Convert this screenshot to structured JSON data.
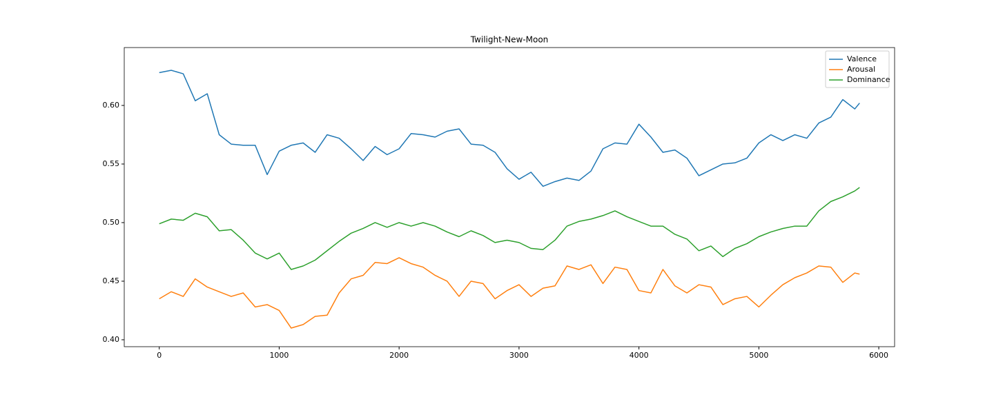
{
  "chart_data": {
    "type": "line",
    "title": "Twilight-New-Moon",
    "x": [
      0,
      100,
      200,
      300,
      400,
      500,
      600,
      700,
      800,
      900,
      1000,
      1100,
      1200,
      1300,
      1400,
      1500,
      1600,
      1700,
      1800,
      1900,
      2000,
      2100,
      2200,
      2300,
      2400,
      2500,
      2600,
      2700,
      2800,
      2900,
      3000,
      3100,
      3200,
      3300,
      3400,
      3500,
      3600,
      3700,
      3800,
      3900,
      4000,
      4100,
      4200,
      4300,
      4400,
      4500,
      4600,
      4700,
      4800,
      4900,
      5000,
      5100,
      5200,
      5300,
      5400,
      5500,
      5600,
      5700,
      5800,
      5840
    ],
    "series": [
      {
        "name": "Valence",
        "color": "#1f77b4",
        "values": [
          0.628,
          0.63,
          0.627,
          0.604,
          0.61,
          0.575,
          0.567,
          0.566,
          0.566,
          0.541,
          0.561,
          0.566,
          0.568,
          0.56,
          0.575,
          0.572,
          0.563,
          0.553,
          0.565,
          0.558,
          0.563,
          0.576,
          0.575,
          0.573,
          0.578,
          0.58,
          0.567,
          0.566,
          0.56,
          0.546,
          0.537,
          0.543,
          0.531,
          0.535,
          0.538,
          0.536,
          0.544,
          0.563,
          0.568,
          0.567,
          0.584,
          0.573,
          0.56,
          0.562,
          0.555,
          0.54,
          0.545,
          0.55,
          0.551,
          0.555,
          0.568,
          0.575,
          0.57,
          0.575,
          0.572,
          0.585,
          0.59,
          0.605,
          0.597,
          0.602
        ]
      },
      {
        "name": "Arousal",
        "color": "#ff7f0e",
        "values": [
          0.435,
          0.441,
          0.437,
          0.452,
          0.445,
          0.441,
          0.437,
          0.44,
          0.428,
          0.43,
          0.425,
          0.41,
          0.413,
          0.42,
          0.421,
          0.44,
          0.452,
          0.455,
          0.466,
          0.465,
          0.47,
          0.465,
          0.462,
          0.455,
          0.45,
          0.437,
          0.45,
          0.448,
          0.435,
          0.442,
          0.447,
          0.437,
          0.444,
          0.446,
          0.463,
          0.46,
          0.464,
          0.448,
          0.462,
          0.46,
          0.442,
          0.44,
          0.46,
          0.446,
          0.44,
          0.447,
          0.445,
          0.43,
          0.435,
          0.437,
          0.428,
          0.438,
          0.447,
          0.453,
          0.457,
          0.463,
          0.462,
          0.449,
          0.457,
          0.456
        ]
      },
      {
        "name": "Dominance",
        "color": "#2ca02c",
        "values": [
          0.499,
          0.503,
          0.502,
          0.508,
          0.505,
          0.493,
          0.494,
          0.485,
          0.474,
          0.469,
          0.474,
          0.46,
          0.463,
          0.468,
          0.476,
          0.484,
          0.491,
          0.495,
          0.5,
          0.496,
          0.5,
          0.497,
          0.5,
          0.497,
          0.492,
          0.488,
          0.493,
          0.489,
          0.483,
          0.485,
          0.483,
          0.478,
          0.477,
          0.485,
          0.497,
          0.501,
          0.503,
          0.506,
          0.51,
          0.505,
          0.501,
          0.497,
          0.497,
          0.49,
          0.486,
          0.476,
          0.48,
          0.471,
          0.478,
          0.482,
          0.488,
          0.492,
          0.495,
          0.497,
          0.497,
          0.51,
          0.518,
          0.522,
          0.527,
          0.53
        ]
      }
    ],
    "xlim": [
      -292,
      6132
    ],
    "xticks": [
      0,
      1000,
      2000,
      3000,
      4000,
      5000,
      6000
    ],
    "ylim": [
      0.3941,
      0.6494
    ],
    "yticks": [
      {
        "value": 0.4,
        "label": "0.40"
      },
      {
        "value": 0.45,
        "label": "0.45"
      },
      {
        "value": 0.5,
        "label": "0.50"
      },
      {
        "value": 0.55,
        "label": "0.55"
      },
      {
        "value": 0.6,
        "label": "0.60"
      }
    ],
    "legend": "upper right",
    "grid": false
  }
}
